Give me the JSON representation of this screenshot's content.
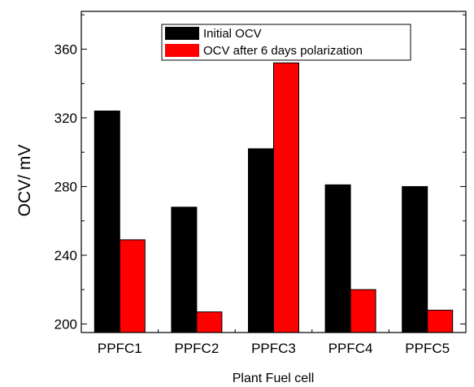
{
  "chart_data": {
    "type": "bar",
    "xlabel": "Plant Fuel cell",
    "ylabel": "OCV/ mV",
    "categories": [
      "PPFC1",
      "PPFC2",
      "PPFC3",
      "PPFC4",
      "PPFC5"
    ],
    "series": [
      {
        "name": "Initial OCV",
        "values": [
          324,
          268,
          302,
          281,
          280
        ],
        "color": "#000000"
      },
      {
        "name": "OCV after 6 days polarization",
        "values": [
          249,
          207,
          352,
          220,
          208
        ],
        "color": "#ff0000"
      }
    ],
    "ylim": [
      195,
      382
    ],
    "yticks": [
      200,
      240,
      280,
      320,
      360
    ],
    "legend": "top-center",
    "grid": false
  }
}
